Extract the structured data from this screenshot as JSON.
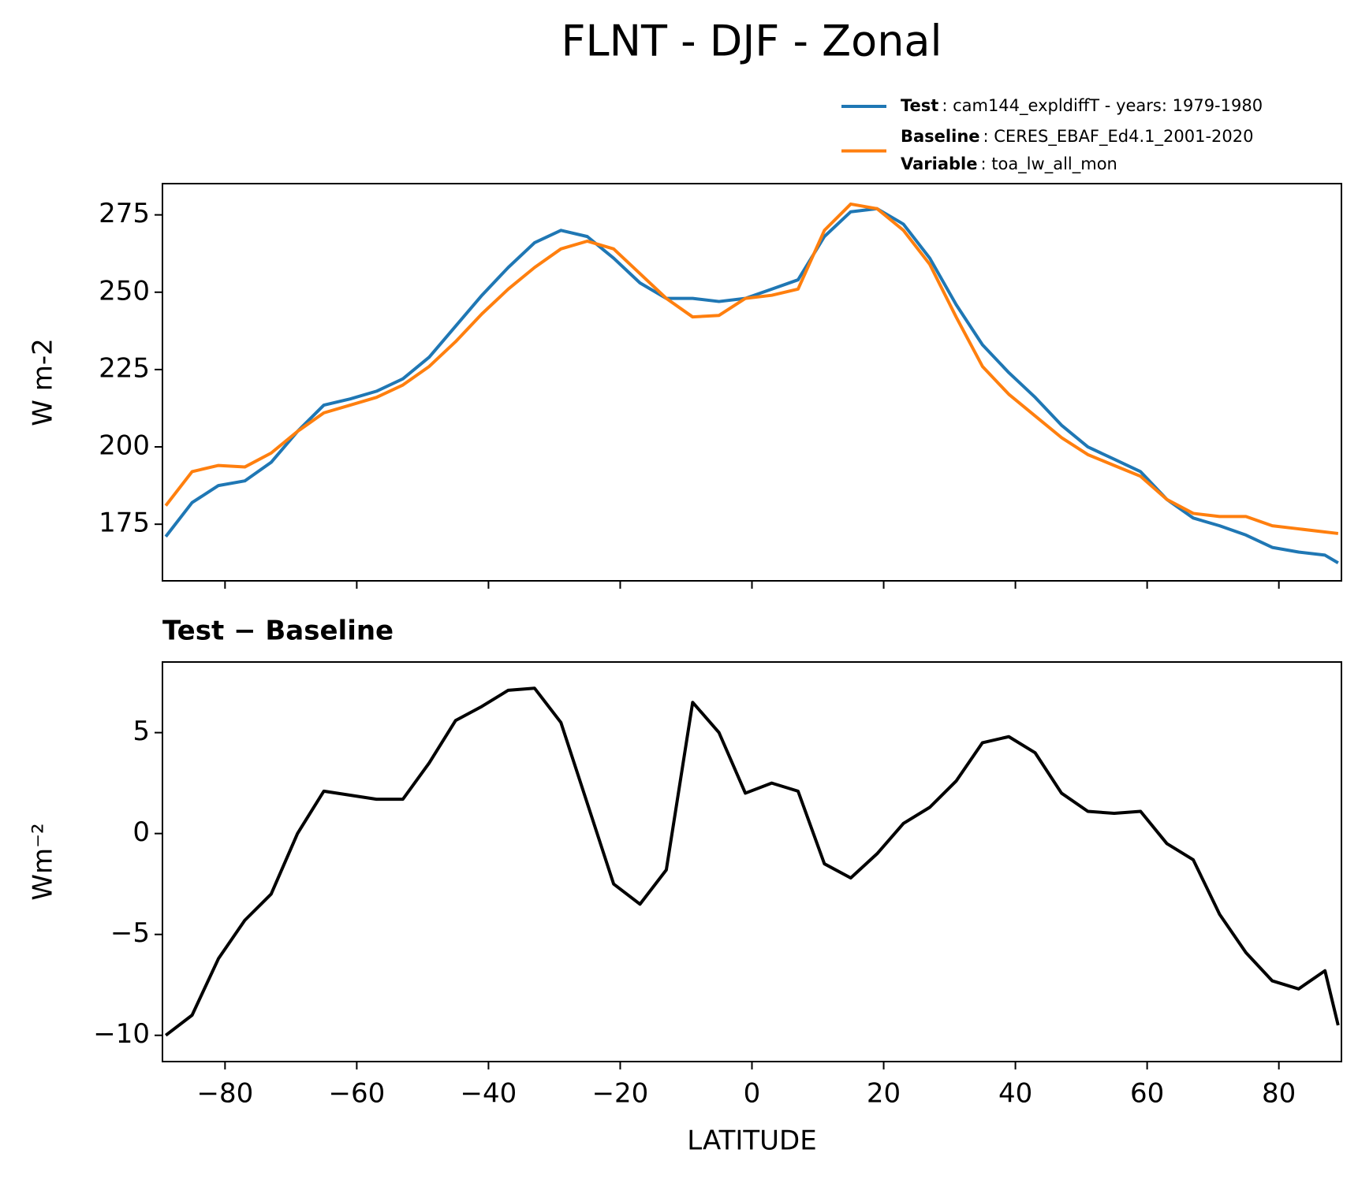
{
  "chart_data": [
    {
      "type": "line",
      "title": "FLNT - DJF - Zonal",
      "ylabel": "W m-2",
      "x": [
        -89,
        -85,
        -81,
        -77,
        -73,
        -69,
        -65,
        -61,
        -57,
        -53,
        -49,
        -45,
        -41,
        -37,
        -33,
        -29,
        -25,
        -21,
        -17,
        -13,
        -9,
        -5,
        -1,
        3,
        7,
        11,
        15,
        19,
        23,
        27,
        31,
        35,
        39,
        43,
        47,
        51,
        55,
        59,
        63,
        67,
        71,
        75,
        79,
        83,
        87,
        89
      ],
      "series": [
        {
          "name": "Test",
          "legend_text": ": cam144_expldiffT - years: 1979-1980",
          "color": "#1f77b4",
          "values": [
            171,
            182,
            187.5,
            189,
            195,
            205,
            213.5,
            215.5,
            218,
            222,
            229,
            239,
            249,
            258,
            266,
            270,
            268,
            261,
            253,
            248,
            248,
            247,
            248,
            251,
            254,
            268,
            276,
            277,
            272,
            261,
            246,
            233,
            224,
            216,
            207,
            200,
            196,
            192,
            183,
            177,
            174.5,
            171.5,
            167.5,
            166,
            165,
            162.5
          ]
        },
        {
          "name": "Baseline",
          "legend_text": ": CERES_EBAF_Ed4.1_2001-2020",
          "legend_extra_name": "Variable",
          "legend_extra_text": ": toa_lw_all_mon",
          "color": "#ff7f0e",
          "values": [
            181,
            192,
            194,
            193.5,
            198,
            205,
            211,
            213.5,
            216,
            220,
            226,
            234,
            243,
            251,
            258,
            264,
            266.5,
            264,
            256,
            248,
            242,
            242.5,
            248,
            249,
            251,
            270,
            278.5,
            277,
            270,
            259,
            242,
            226,
            217,
            210,
            203,
            197.5,
            194,
            190.5,
            183,
            178.5,
            177.5,
            177.5,
            174.5,
            173.5,
            172.5,
            172
          ]
        }
      ],
      "xlim": [
        -89.5,
        89.5
      ],
      "xticks": [
        -80,
        -60,
        -40,
        -20,
        0,
        20,
        40,
        60,
        80
      ],
      "ylim": [
        156.7,
        285.1
      ],
      "yticks": [
        175,
        200,
        225,
        250,
        275
      ]
    },
    {
      "type": "line",
      "title": "Test − Baseline",
      "ylabel": "Wm⁻²",
      "xlabel": "LATITUDE",
      "x": [
        -89,
        -85,
        -81,
        -77,
        -73,
        -69,
        -65,
        -61,
        -57,
        -53,
        -49,
        -45,
        -41,
        -37,
        -33,
        -29,
        -25,
        -21,
        -17,
        -13,
        -9,
        -5,
        -1,
        3,
        7,
        11,
        15,
        19,
        23,
        27,
        31,
        35,
        39,
        43,
        47,
        51,
        55,
        59,
        63,
        67,
        71,
        75,
        79,
        83,
        87,
        89
      ],
      "series": [
        {
          "color": "#000000",
          "values": [
            -10,
            -9,
            -6.2,
            -4.3,
            -3,
            0,
            2.1,
            1.9,
            1.7,
            1.7,
            3.5,
            5.6,
            6.3,
            7.1,
            7.2,
            5.5,
            1.5,
            -2.5,
            -3.5,
            -1.8,
            6.5,
            5,
            2,
            2.5,
            2.1,
            -1.5,
            -2.2,
            -1,
            0.5,
            1.3,
            2.6,
            4.5,
            4.8,
            4,
            2,
            1.1,
            1.0,
            1.1,
            -0.5,
            -1.3,
            -4,
            -5.9,
            -7.3,
            -7.7,
            -6.8,
            -9.5
          ]
        }
      ],
      "xlim": [
        -89.5,
        89.5
      ],
      "xticks": [
        {
          "value": -80,
          "label": "−80"
        },
        {
          "value": -60,
          "label": "−60"
        },
        {
          "value": -40,
          "label": "−40"
        },
        {
          "value": -20,
          "label": "−20"
        },
        0,
        20,
        40,
        60,
        80
      ],
      "ylim": [
        -11.3,
        8.5
      ],
      "yticks": [
        {
          "value": -10,
          "label": "−10"
        },
        {
          "value": -5,
          "label": "−5"
        },
        0,
        5
      ]
    }
  ]
}
